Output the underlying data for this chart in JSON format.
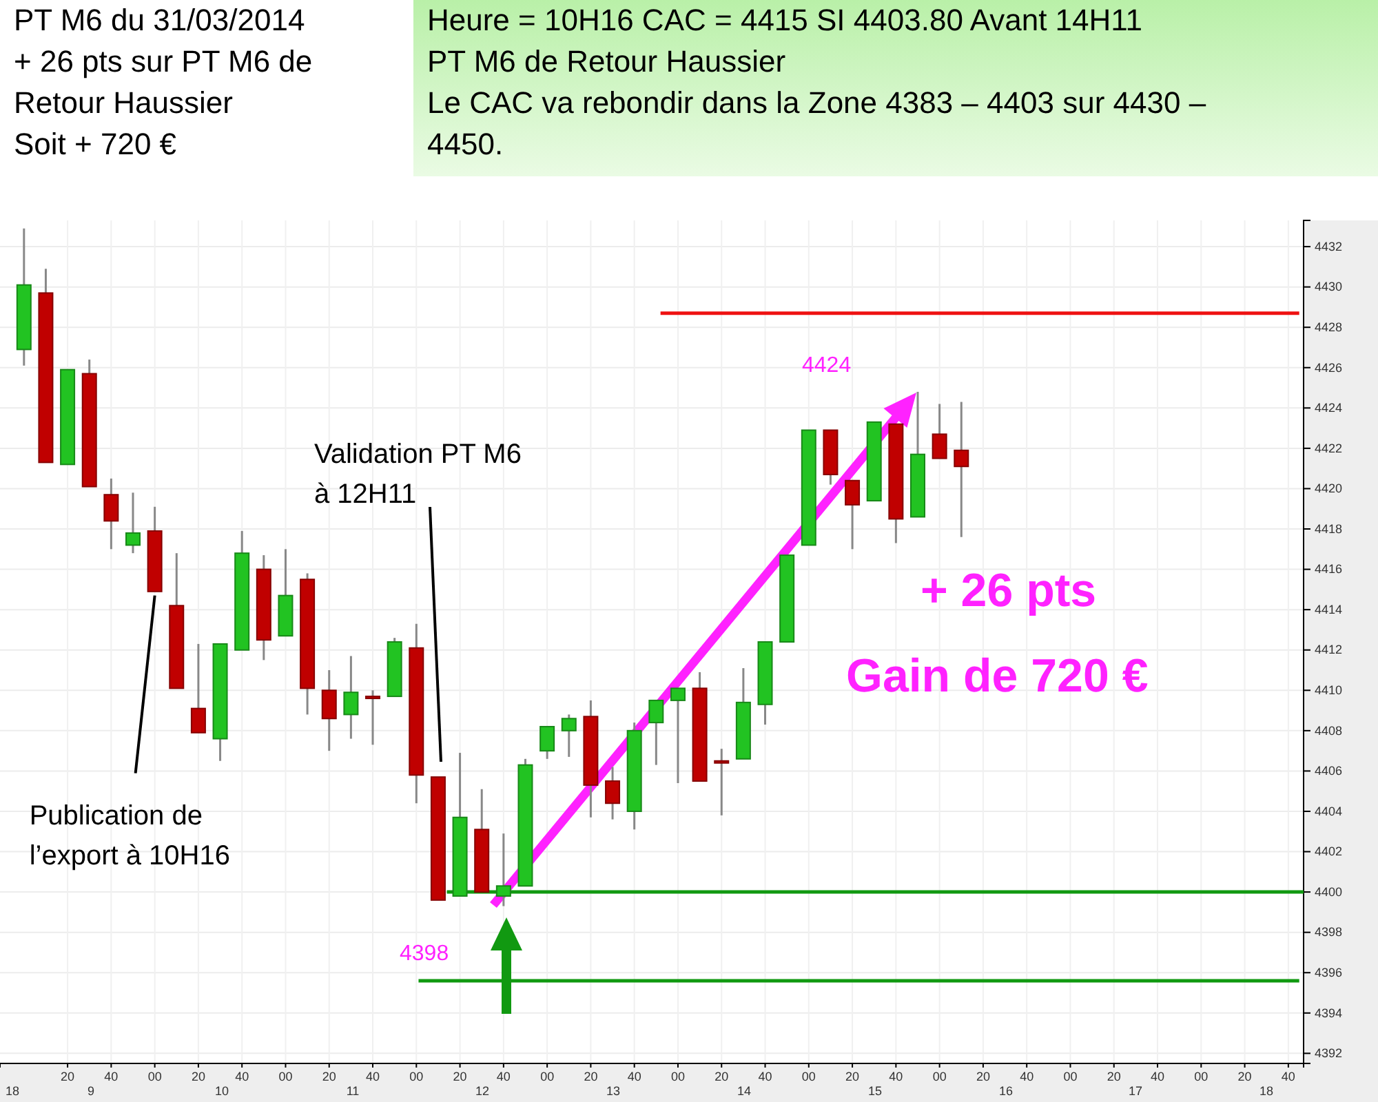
{
  "chart_data": {
    "type": "candlestick",
    "title": "PT M6 du 31/03/2014\n+ 26 pts sur PT M6 de\nRetour Haussier\nSoit + 720 €",
    "subtitle": "Heure = 10H16  CAC = 4415   SI 4403.80 Avant 14H11\nPT M6 de Retour Haussier\nLe CAC va rebondir dans la Zone 4383 – 4403 sur 4430 –\n4450.",
    "x": [
      "2014-03-31T08:00",
      "2014-03-31T08:10",
      "2014-03-31T08:20",
      "2014-03-31T08:30",
      "2014-03-31T08:40",
      "2014-03-31T08:50",
      "2014-03-31T09:00",
      "2014-03-31T09:10",
      "2014-03-31T09:20",
      "2014-03-31T09:30",
      "2014-03-31T09:40",
      "2014-03-31T09:50",
      "2014-03-31T10:00",
      "2014-03-31T10:10",
      "2014-03-31T10:20",
      "2014-03-31T10:30",
      "2014-03-31T10:40",
      "2014-03-31T10:50",
      "2014-03-31T11:00",
      "2014-03-31T11:10",
      "2014-03-31T11:20",
      "2014-03-31T11:30",
      "2014-03-31T11:40",
      "2014-03-31T11:50",
      "2014-03-31T12:00",
      "2014-03-31T12:10",
      "2014-03-31T12:20",
      "2014-03-31T12:30",
      "2014-03-31T12:40",
      "2014-03-31T12:50",
      "2014-03-31T13:00",
      "2014-03-31T13:10",
      "2014-03-31T13:20",
      "2014-03-31T13:30",
      "2014-03-31T13:40",
      "2014-03-31T13:50",
      "2014-03-31T14:00",
      "2014-03-31T14:10",
      "2014-03-31T14:20",
      "2014-03-31T14:30",
      "2014-03-31T14:40",
      "2014-03-31T14:50",
      "2014-03-31T15:00",
      "2014-03-31T15:10"
    ],
    "ohlc": [
      [
        4426.9,
        4432.9,
        4426.1,
        4430.1
      ],
      [
        4429.7,
        4430.9,
        4421.3,
        4421.3
      ],
      [
        4421.2,
        4425.9,
        4421.2,
        4425.9
      ],
      [
        4425.7,
        4426.4,
        4420.1,
        4420.1
      ],
      [
        4419.7,
        4420.5,
        4417.0,
        4418.4
      ],
      [
        4417.2,
        4419.8,
        4416.8,
        4417.8
      ],
      [
        4417.9,
        4419.1,
        4414.9,
        4414.9
      ],
      [
        4414.2,
        4416.8,
        4410.1,
        4410.1
      ],
      [
        4409.1,
        4412.3,
        4407.9,
        4407.9
      ],
      [
        4407.6,
        4412.3,
        4406.5,
        4412.3
      ],
      [
        4412.0,
        4417.9,
        4412.0,
        4416.8
      ],
      [
        4416.0,
        4416.7,
        4411.5,
        4412.5
      ],
      [
        4412.7,
        4417.0,
        4412.7,
        4414.7
      ],
      [
        4415.5,
        4415.8,
        4408.8,
        4410.1
      ],
      [
        4410.0,
        4411.0,
        4407.0,
        4408.6
      ],
      [
        4408.8,
        4411.7,
        4407.6,
        4409.9
      ],
      [
        4409.7,
        4410.0,
        4407.3,
        4409.7
      ],
      [
        4409.7,
        4412.6,
        4409.7,
        4412.4
      ],
      [
        4412.1,
        4413.3,
        4404.4,
        4405.8
      ],
      [
        4405.7,
        4405.7,
        4399.6,
        4399.6
      ],
      [
        4399.8,
        4406.9,
        4399.8,
        4403.7
      ],
      [
        4403.1,
        4405.1,
        4400.0,
        4400.0
      ],
      [
        4399.8,
        4402.9,
        4399.3,
        4400.3
      ],
      [
        4400.3,
        4406.6,
        4400.3,
        4406.3
      ],
      [
        4407.0,
        4408.2,
        4406.6,
        4408.2
      ],
      [
        4408.0,
        4408.8,
        4406.7,
        4408.6
      ],
      [
        4408.7,
        4409.5,
        4403.7,
        4405.3
      ],
      [
        4405.5,
        4406.2,
        4403.6,
        4404.4
      ],
      [
        4404.0,
        4408.4,
        4403.1,
        4408.0
      ],
      [
        4408.4,
        4409.5,
        4406.3,
        4409.5
      ],
      [
        4409.5,
        4410.1,
        4405.4,
        4410.1
      ],
      [
        4410.1,
        4410.9,
        4405.5,
        4405.5
      ],
      [
        4406.5,
        4407.1,
        4403.8,
        4406.4
      ],
      [
        4406.6,
        4411.1,
        4406.6,
        4409.4
      ],
      [
        4409.3,
        4412.4,
        4408.3,
        4412.4
      ],
      [
        4412.4,
        4416.7,
        4412.4,
        4416.7
      ],
      [
        4417.2,
        4422.9,
        4417.2,
        4422.9
      ],
      [
        4422.9,
        4422.9,
        4420.2,
        4420.7
      ],
      [
        4420.4,
        4420.4,
        4417.0,
        4419.2
      ],
      [
        4419.4,
        4423.3,
        4419.4,
        4423.3
      ],
      [
        4423.2,
        4423.2,
        4417.3,
        4418.5
      ],
      [
        4418.6,
        4424.8,
        4418.6,
        4421.7
      ],
      [
        4422.7,
        4424.2,
        4421.5,
        4421.5
      ],
      [
        4421.9,
        4424.3,
        4417.6,
        4421.1
      ]
    ],
    "colors": [
      "#22c322",
      "#c00000",
      "#22c322",
      "#c00000",
      "#c00000",
      "#22c322",
      "#c00000",
      "#c00000",
      "#c00000",
      "#22c322",
      "#22c322",
      "#c00000",
      "#22c322",
      "#c00000",
      "#c00000",
      "#22c322",
      "#c00000",
      "#22c322",
      "#c00000",
      "#c00000",
      "#22c322",
      "#c00000",
      "#22c322",
      "#22c322",
      "#22c322",
      "#22c322",
      "#c00000",
      "#c00000",
      "#22c322",
      "#22c322",
      "#22c322",
      "#c00000",
      "#c00000",
      "#22c322",
      "#22c322",
      "#22c322",
      "#22c322",
      "#c00000",
      "#c00000",
      "#22c322",
      "#c00000",
      "#22c322",
      "#c00000",
      "#c00000"
    ],
    "series": [
      {
        "type": "line",
        "color": "#ee1111",
        "x": [
          "2014-03-31T12:52",
          "2014-03-31T17:45"
        ],
        "values": [
          4428.7,
          4428.7
        ]
      },
      {
        "type": "line",
        "color": "#119911",
        "x": [
          "2014-03-31T11:14",
          "2014-03-31T17:47"
        ],
        "values": [
          4400.0,
          4400.0
        ]
      },
      {
        "type": "line",
        "color": "#119911",
        "x": [
          "2014-03-31T11:01",
          "2014-03-31T17:45"
        ],
        "values": [
          4395.6,
          4395.6
        ]
      }
    ],
    "xlim": [
      "2014-03-31T07:49",
      "2014-03-31T17:47"
    ],
    "xticks": [
      {
        "value": "2014-03-31T08:20",
        "label": "20"
      },
      {
        "value": "2014-03-31T08:40",
        "label": "40"
      },
      {
        "value": "2014-03-31T09:00",
        "label": "00"
      },
      {
        "value": "2014-03-31T09:20",
        "label": "20"
      },
      {
        "value": "2014-03-31T09:40",
        "label": "40"
      },
      {
        "value": "2014-03-31T10:00",
        "label": "00"
      },
      {
        "value": "2014-03-31T10:20",
        "label": "20"
      },
      {
        "value": "2014-03-31T10:40",
        "label": "40"
      },
      {
        "value": "2014-03-31T11:00",
        "label": "00"
      },
      {
        "value": "2014-03-31T11:20",
        "label": "20"
      },
      {
        "value": "2014-03-31T11:40",
        "label": "40"
      },
      {
        "value": "2014-03-31T12:00",
        "label": "00"
      },
      {
        "value": "2014-03-31T12:20",
        "label": "20"
      },
      {
        "value": "2014-03-31T12:40",
        "label": "40"
      },
      {
        "value": "2014-03-31T13:00",
        "label": "00"
      },
      {
        "value": "2014-03-31T13:20",
        "label": "20"
      },
      {
        "value": "2014-03-31T13:40",
        "label": "40"
      },
      {
        "value": "2014-03-31T14:00",
        "label": "00"
      },
      {
        "value": "2014-03-31T14:20",
        "label": "20"
      },
      {
        "value": "2014-03-31T14:40",
        "label": "40"
      },
      {
        "value": "2014-03-31T15:00",
        "label": "00"
      },
      {
        "value": "2014-03-31T15:20",
        "label": "20"
      },
      {
        "value": "2014-03-31T15:40",
        "label": "40"
      },
      {
        "value": "2014-03-31T16:00",
        "label": "00"
      },
      {
        "value": "2014-03-31T16:20",
        "label": "20"
      },
      {
        "value": "2014-03-31T16:40",
        "label": "40"
      },
      {
        "value": "2014-03-31T17:00",
        "label": "00"
      },
      {
        "value": "2014-03-31T17:20",
        "label": "20"
      },
      {
        "value": "2014-03-31T17:40",
        "label": "40"
      }
    ],
    "ylim": [
      4391.5,
      4433.3
    ],
    "yticks": [
      4392,
      4394,
      4396,
      4398,
      4400,
      4402,
      4404,
      4406,
      4408,
      4410,
      4412,
      4414,
      4416,
      4418,
      4420,
      4422,
      4424,
      4426,
      4428,
      4430,
      4432
    ],
    "grid": true,
    "annotations": [
      "Validation PT M6\nà 12H11",
      {
        "text": "Publication de\nl’export à 10H16",
        "x": "2014-03-31T09:00",
        "y": 4414.7
      },
      "4398",
      "4424",
      "+ 26 pts",
      "Gain de 720 €",
      "18",
      "9",
      "10",
      "11",
      "12",
      "13",
      "14",
      "15",
      "16",
      "17",
      "18"
    ]
  }
}
